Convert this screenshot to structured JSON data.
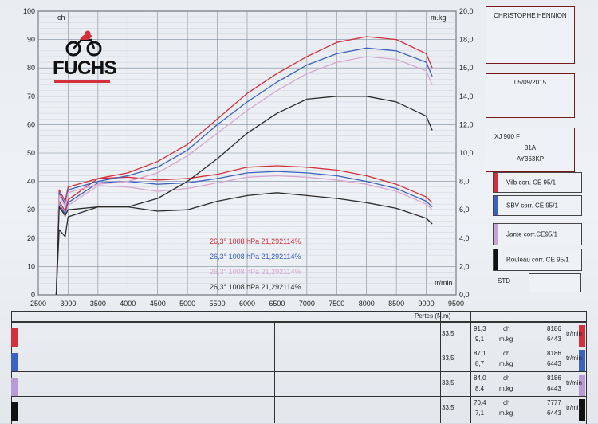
{
  "header": {
    "owner": "CHRISTOPHE HENNION",
    "date": "05/09/2015",
    "vehicle": {
      "model": "XJ 900 F",
      "code": "31A",
      "plate": "AY363KP"
    },
    "logo_text": "FUCHS",
    "std_label": "STD"
  },
  "legend": [
    {
      "label": "Vilb corr. CE 95/1",
      "color": "#d62f3c"
    },
    {
      "label": "SBV corr. CE 95/1",
      "color": "#3b62c0"
    },
    {
      "label": "Jante corr.CE95/1",
      "color": "#d9a6cf"
    },
    {
      "label": "Rouleau corr. CE 95/1",
      "color": "#2b2b2b"
    }
  ],
  "conditions": [
    {
      "text": "26,3°  1008 hPa  21,292114%",
      "color": "#d62f3c"
    },
    {
      "text": "26,3°  1008 hPa  21,292114%",
      "color": "#3b62c0"
    },
    {
      "text": "26,3°  1008 hPa  21,292114%",
      "color": "#d9a6cf"
    },
    {
      "text": "26,3°  1008 hPa  21,292114%",
      "color": "#2b2b2b"
    }
  ],
  "axis_labels": {
    "left_unit": "ch",
    "right_unit": "m.kg",
    "x_unit": "tr/min"
  },
  "chart_data": {
    "type": "line",
    "x_ticks": [
      2500,
      3000,
      3500,
      4000,
      4500,
      5000,
      5500,
      6000,
      6500,
      7000,
      7500,
      8000,
      8500,
      9000,
      9500
    ],
    "xlim": [
      2500,
      9500
    ],
    "y_left_ticks": [
      0,
      10,
      20,
      30,
      40,
      50,
      60,
      70,
      80,
      90,
      100
    ],
    "y_left_lim": [
      0,
      100
    ],
    "y_right_ticks": [
      "0,0",
      "2,0",
      "4,0",
      "6,0",
      "8,0",
      "10,0",
      "12,0",
      "14,0",
      "16,0",
      "18,0",
      "20,0"
    ],
    "y_right_lim": [
      0,
      20
    ],
    "grid": true,
    "power_series": [
      {
        "name": "Vilb corr. CE 95/1",
        "color": "#d62f3c",
        "x": [
          2800,
          2850,
          2950,
          3000,
          3500,
          4000,
          4500,
          5000,
          5500,
          6000,
          6500,
          7000,
          7500,
          8000,
          8500,
          9000,
          9100
        ],
        "y": [
          0,
          37,
          33,
          38,
          41,
          43,
          47,
          53,
          62,
          71,
          78,
          84,
          89,
          91,
          90,
          85,
          80
        ]
      },
      {
        "name": "SBV corr. CE 95/1",
        "color": "#3b62c0",
        "x": [
          2800,
          2850,
          2950,
          3000,
          3500,
          4000,
          4500,
          5000,
          5500,
          6000,
          6500,
          7000,
          7500,
          8000,
          8500,
          9000,
          9100
        ],
        "y": [
          0,
          36,
          32,
          37,
          40,
          42,
          45,
          51,
          60,
          68,
          75,
          81,
          85,
          87,
          86,
          82,
          77
        ]
      },
      {
        "name": "Jante corr.CE95/1",
        "color": "#d9a6cf",
        "x": [
          2800,
          2850,
          2950,
          3000,
          3500,
          4000,
          4500,
          5000,
          5500,
          6000,
          6500,
          7000,
          7500,
          8000,
          8500,
          9000,
          9100
        ],
        "y": [
          0,
          35,
          31,
          36,
          39,
          40,
          43,
          49,
          57,
          65,
          72,
          78,
          82,
          84,
          83,
          79,
          74
        ]
      },
      {
        "name": "Rouleau corr. CE 95/1",
        "color": "#2b2b2b",
        "x": [
          2800,
          2850,
          2950,
          3000,
          3500,
          4000,
          4500,
          5000,
          5500,
          6000,
          6500,
          7000,
          7500,
          8000,
          8500,
          9000,
          9100
        ],
        "y": [
          0,
          31,
          28,
          30,
          31,
          31,
          34,
          40,
          48,
          57,
          64,
          69,
          70,
          70,
          68,
          63,
          58
        ]
      }
    ],
    "torque_series": [
      {
        "name": "Vilb corr. CE 95/1",
        "color": "#d62f3c",
        "x": [
          2800,
          2850,
          2950,
          3000,
          3500,
          4000,
          4500,
          5000,
          5500,
          6000,
          6500,
          7000,
          7500,
          8000,
          8500,
          9000,
          9100
        ],
        "y": [
          0,
          6.6,
          5.9,
          6.7,
          8.2,
          8.3,
          8.1,
          8.2,
          8.5,
          9.0,
          9.1,
          9.0,
          8.8,
          8.4,
          7.8,
          6.9,
          6.5
        ]
      },
      {
        "name": "SBV corr. CE 95/1",
        "color": "#3b62c0",
        "x": [
          2800,
          2850,
          2950,
          3000,
          3500,
          4000,
          4500,
          5000,
          5500,
          6000,
          6500,
          7000,
          7500,
          8000,
          8500,
          9000,
          9100
        ],
        "y": [
          0,
          6.4,
          5.7,
          6.5,
          7.9,
          8.0,
          7.8,
          7.9,
          8.2,
          8.6,
          8.7,
          8.6,
          8.4,
          8.0,
          7.5,
          6.6,
          6.2
        ]
      },
      {
        "name": "Jante corr.CE95/1",
        "color": "#d9a6cf",
        "x": [
          2800,
          2850,
          2950,
          3000,
          3500,
          4000,
          4500,
          5000,
          5500,
          6000,
          6500,
          7000,
          7500,
          8000,
          8500,
          9000,
          9100
        ],
        "y": [
          0,
          6.2,
          5.5,
          6.3,
          7.7,
          7.6,
          7.3,
          7.5,
          7.9,
          8.3,
          8.4,
          8.3,
          8.1,
          7.8,
          7.3,
          6.4,
          6.0
        ]
      },
      {
        "name": "Rouleau corr. CE 95/1",
        "color": "#2b2b2b",
        "x": [
          2800,
          2850,
          2950,
          3000,
          3500,
          4000,
          4500,
          5000,
          5500,
          6000,
          6500,
          7000,
          7500,
          8000,
          8500,
          9000,
          9100
        ],
        "y": [
          0,
          4.6,
          4.1,
          5.5,
          6.2,
          6.2,
          5.9,
          6.0,
          6.6,
          7.0,
          7.2,
          7.0,
          6.8,
          6.5,
          6.1,
          5.4,
          5.0
        ]
      }
    ]
  },
  "table": {
    "header_label": "Pertes (N.m)",
    "rows": [
      {
        "color": "#d62f3c",
        "pertes": "33,5",
        "ch": "91,3",
        "mkg": "9,1",
        "ch_unit": "ch",
        "mkg_unit": "m.kg",
        "rpm_ch": "8186",
        "rpm_mkg": "6443",
        "rpm_unit": "tr/min"
      },
      {
        "color": "#3b62c0",
        "pertes": "33,5",
        "ch": "87,1",
        "mkg": "8,7",
        "ch_unit": "ch",
        "mkg_unit": "m.kg",
        "rpm_ch": "8186",
        "rpm_mkg": "6443",
        "rpm_unit": "tr/min"
      },
      {
        "color": "#b89ad6",
        "pertes": "33,5",
        "ch": "84,0",
        "mkg": "8,4",
        "ch_unit": "ch",
        "mkg_unit": "m.kg",
        "rpm_ch": "8186",
        "rpm_mkg": "6443",
        "rpm_unit": "tr/min"
      },
      {
        "color": "#111111",
        "pertes": "33,5",
        "ch": "70,4",
        "mkg": "7,1",
        "ch_unit": "ch",
        "mkg_unit": "m.kg",
        "rpm_ch": "7777",
        "rpm_mkg": "6443",
        "rpm_unit": "tr/min"
      }
    ]
  }
}
